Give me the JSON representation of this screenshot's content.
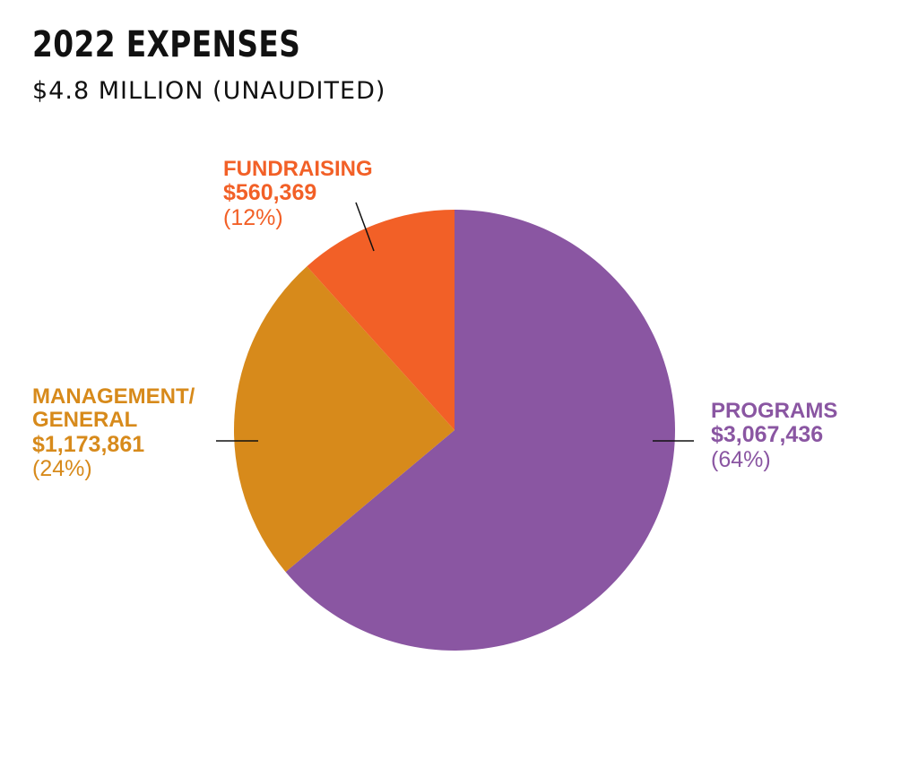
{
  "title": "2022 EXPENSES",
  "subtitle": "$4.8 MILLION (UNAUDITED)",
  "chart_data": {
    "type": "pie",
    "title": "2022 EXPENSES",
    "subtitle": "$4.8 MILLION (UNAUDITED)",
    "slices": [
      {
        "name": "PROGRAMS",
        "value": 3067436,
        "amount_label": "$3,067,436",
        "percent_label": "(64%)",
        "color": "#8A56A2"
      },
      {
        "name": "MANAGEMENT/ GENERAL",
        "value": 1173861,
        "amount_label": "$1,173,861",
        "percent_label": "(24%)",
        "color": "#D78A1B"
      },
      {
        "name": "FUNDRAISING",
        "value": 560369,
        "amount_label": "$560,369",
        "percent_label": "(12%)",
        "color": "#F26027"
      }
    ]
  }
}
